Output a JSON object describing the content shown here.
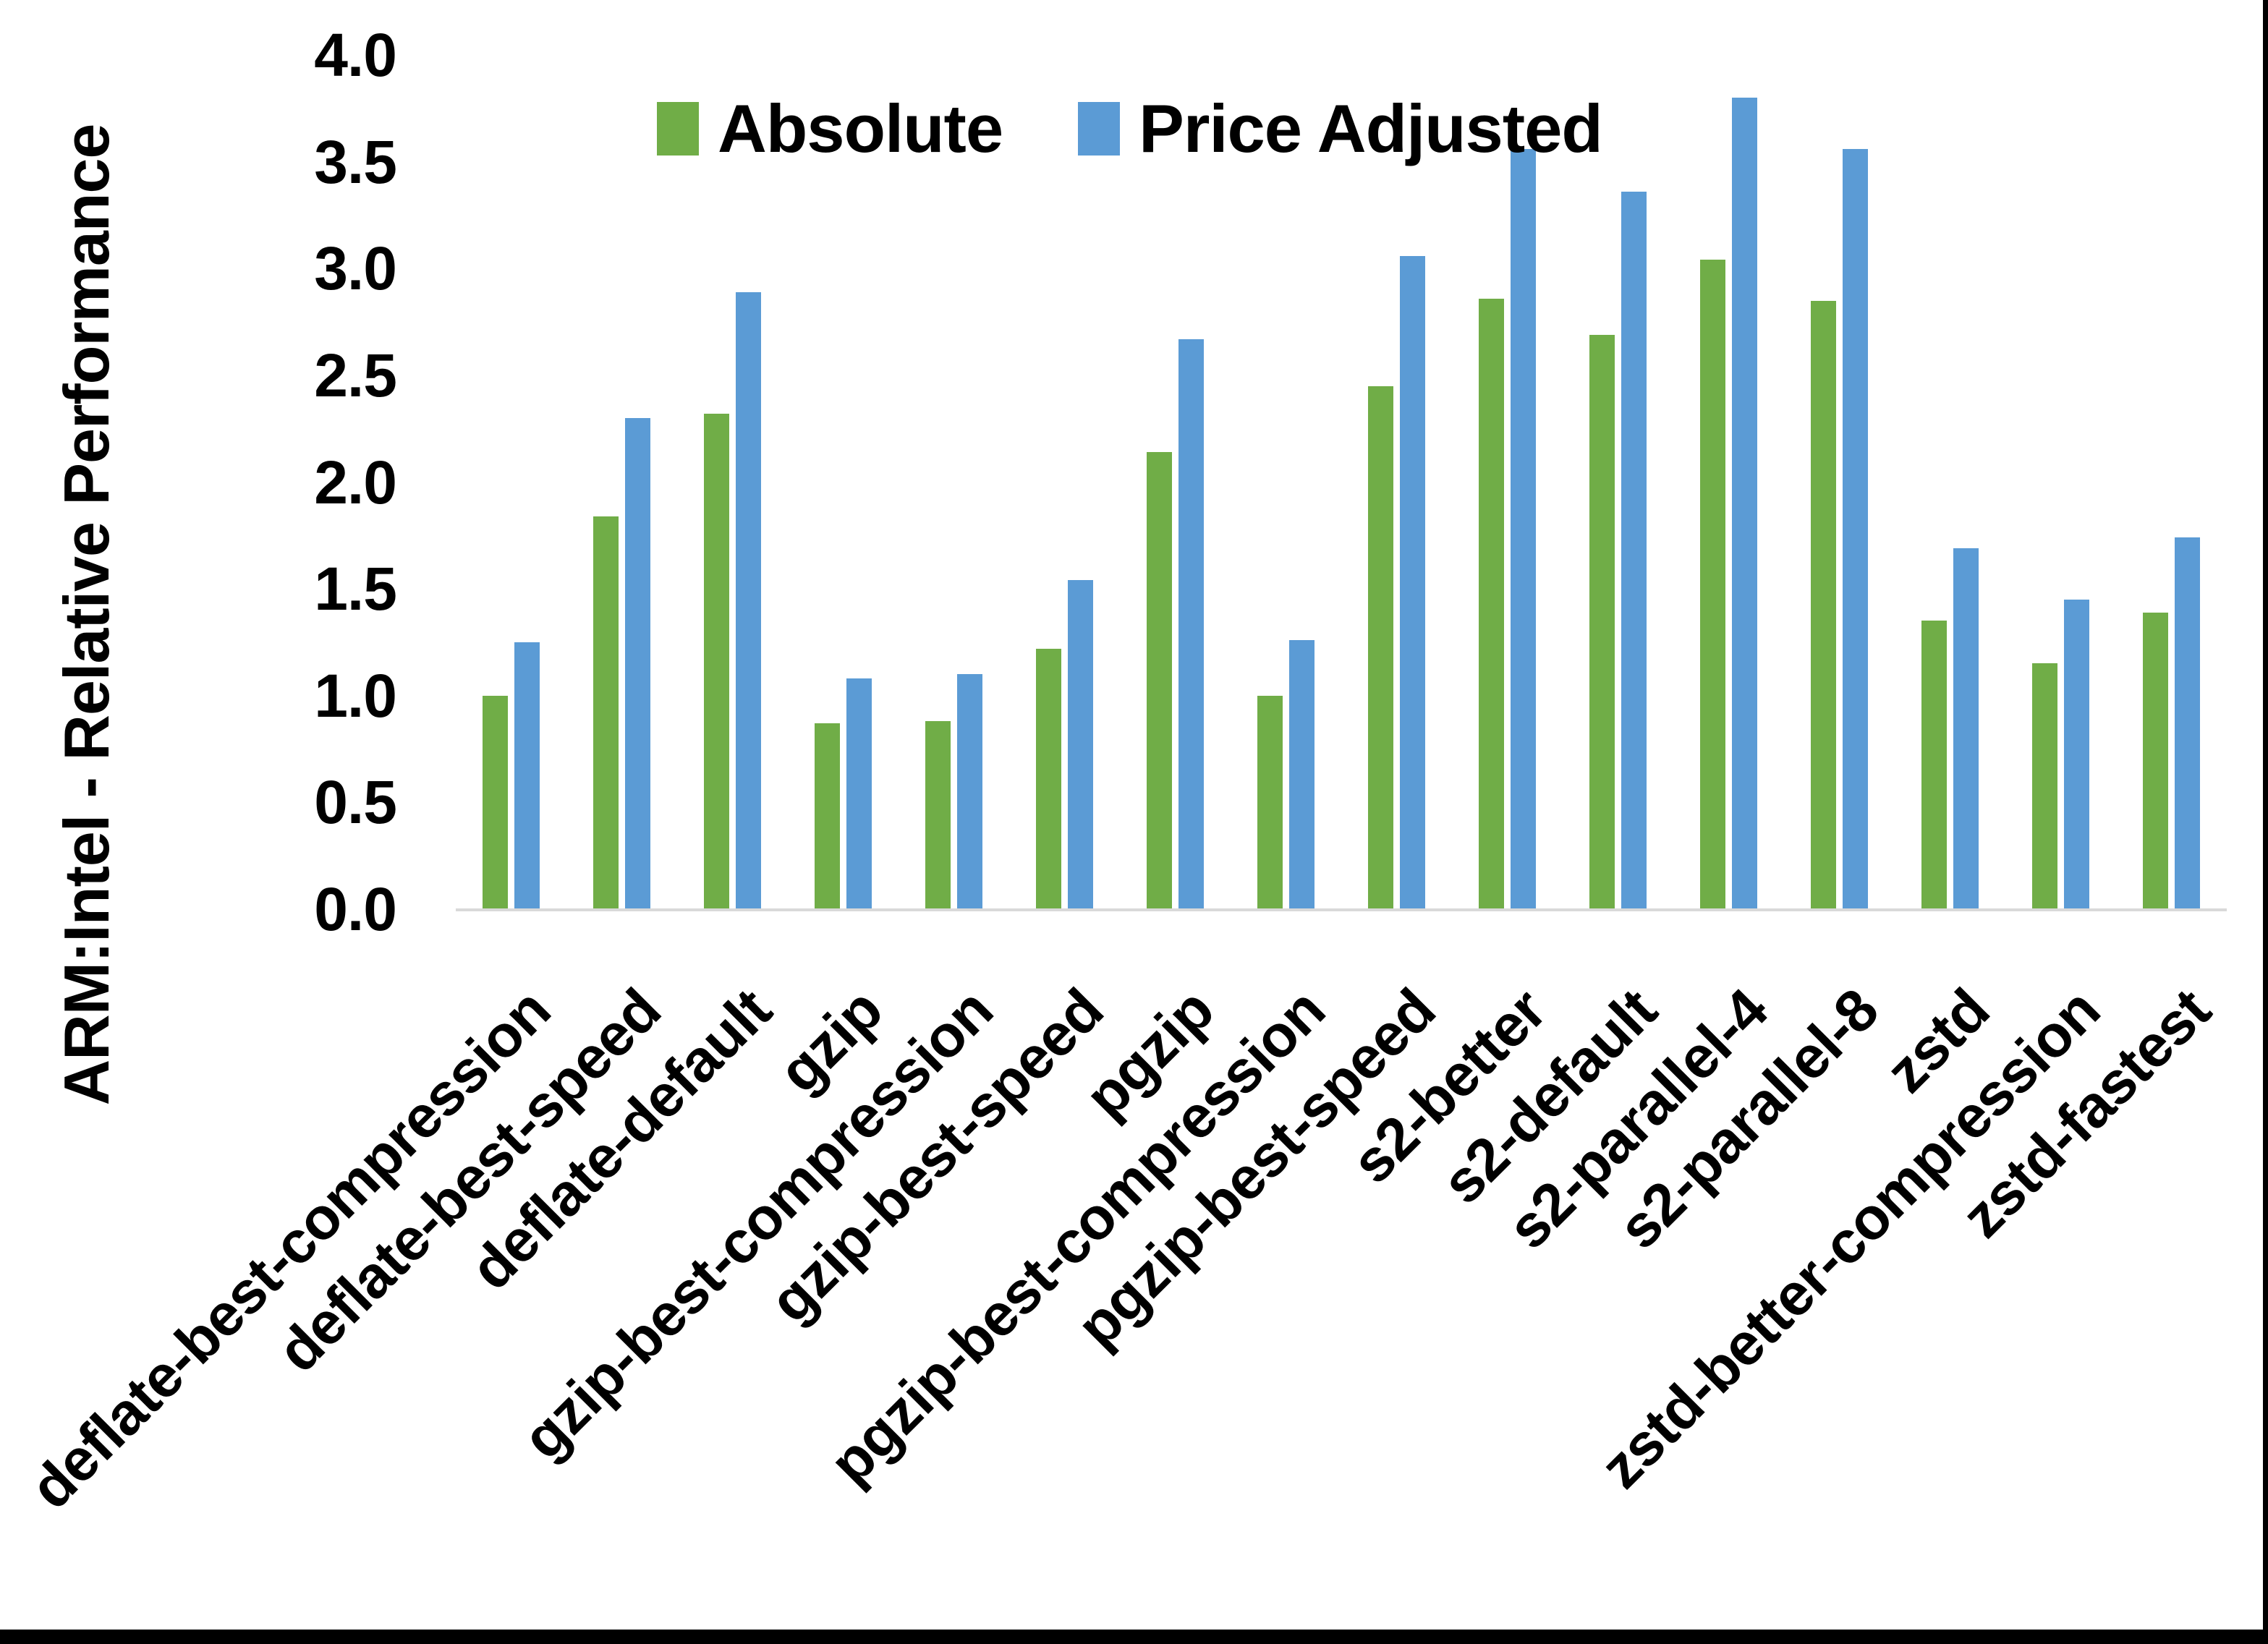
{
  "chart_data": {
    "type": "bar",
    "title": "",
    "ylabel": "ARM:Intel - Relative Performance",
    "xlabel": "",
    "ylim": [
      0.0,
      4.0
    ],
    "y_tick_step": 0.5,
    "y_ticks": [
      "0.0",
      "0.5",
      "1.0",
      "1.5",
      "2.0",
      "2.5",
      "3.0",
      "3.5",
      "4.0"
    ],
    "grid": false,
    "legend_position": "top-center",
    "categories": [
      "deflate-best-compression",
      "deflate-best-speed",
      "deflate-default",
      "gzip",
      "gzip-best-compression",
      "gzip-best-speed",
      "pgzip",
      "pgzip-best-compression",
      "pgzip-best-speed",
      "s2-better",
      "s2-default",
      "s2-parallel-4",
      "s2-parallel-8",
      "zstd",
      "zstd-better-compression",
      "zstd-fastest"
    ],
    "series": [
      {
        "name": "Absolute",
        "color": "#70AD47",
        "values": [
          1.0,
          1.84,
          2.32,
          0.87,
          0.88,
          1.22,
          2.14,
          1.0,
          2.45,
          2.86,
          2.69,
          3.04,
          2.85,
          1.35,
          1.15,
          1.39
        ]
      },
      {
        "name": "Price Adjusted",
        "color": "#5B9BD5",
        "values": [
          1.25,
          2.3,
          2.89,
          1.08,
          1.1,
          1.54,
          2.67,
          1.26,
          3.06,
          3.56,
          3.36,
          3.8,
          3.56,
          1.69,
          1.45,
          1.74
        ]
      }
    ]
  },
  "colors": {
    "absolute_series": "#70AD47",
    "price_adjusted_series": "#5B9BD5",
    "axis_line": "#D9D9D9",
    "frame_edge": "#000000"
  }
}
